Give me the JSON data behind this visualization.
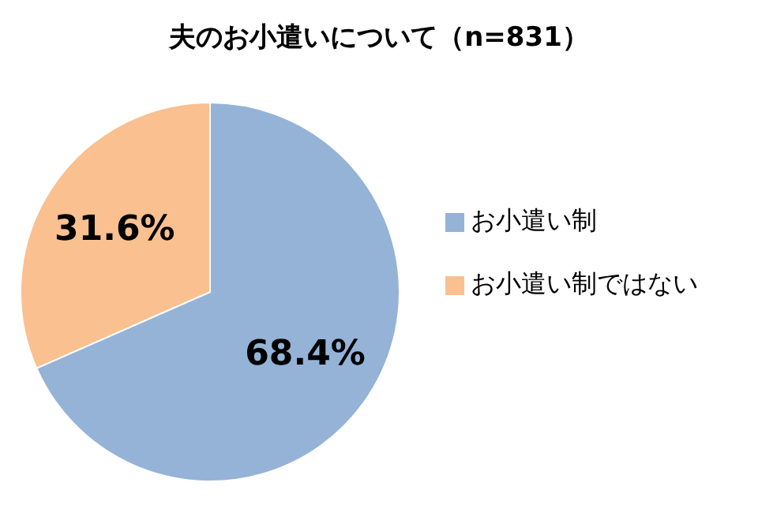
{
  "chart_data": {
    "type": "pie",
    "title": "夫のお小遣いについて（n=831）",
    "categories": [
      "お小遣い制",
      "お小遣い制ではない"
    ],
    "values": [
      68.4,
      31.6
    ],
    "colors": [
      "#95b3d7",
      "#fac090"
    ],
    "value_labels": [
      "68.4%",
      "31.6%"
    ],
    "legend": "right"
  }
}
